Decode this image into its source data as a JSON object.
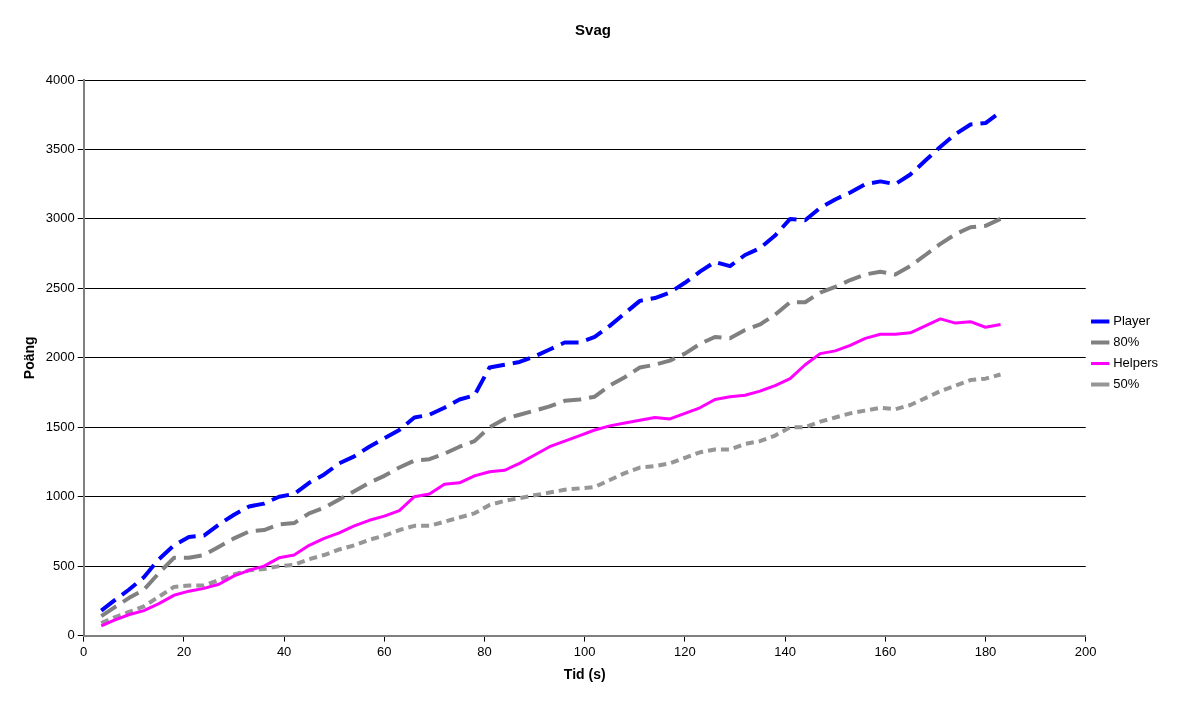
{
  "chart_data": {
    "type": "line",
    "title": "Svag",
    "xlabel": "Tid (s)",
    "ylabel": "Poäng",
    "x": [
      3.5,
      6,
      9,
      12,
      15,
      18,
      21,
      24,
      27,
      30,
      33,
      36,
      39,
      42,
      45,
      48,
      51,
      54,
      57,
      60,
      63,
      66,
      69,
      72,
      75,
      78,
      81,
      84,
      87,
      90,
      93,
      96,
      99,
      102,
      105,
      108,
      111,
      114,
      117,
      120,
      123,
      126,
      129,
      132,
      135,
      138,
      141,
      144,
      147,
      150,
      153,
      156,
      159,
      162,
      165,
      168,
      171,
      174,
      177,
      180,
      183
    ],
    "xlim": [
      0,
      200
    ],
    "xticks": [
      0,
      20,
      40,
      60,
      80,
      100,
      120,
      140,
      160,
      180,
      200
    ],
    "ylim": [
      0,
      4000
    ],
    "yticks": [
      0,
      500,
      1000,
      1500,
      2000,
      2500,
      3000,
      3500,
      4000
    ],
    "grid": "y",
    "legend": "right",
    "marker": "none",
    "series": [
      {
        "name": "Player",
        "color": "#0000ff",
        "line_style": "dashed",
        "values": [
          180,
          250,
          330,
          420,
          550,
          650,
          710,
          720,
          800,
          870,
          930,
          950,
          1000,
          1020,
          1100,
          1160,
          1240,
          1290,
          1360,
          1420,
          1480,
          1570,
          1590,
          1640,
          1700,
          1730,
          1930,
          1950,
          1970,
          2010,
          2060,
          2110,
          2110,
          2150,
          2230,
          2320,
          2410,
          2430,
          2470,
          2540,
          2620,
          2690,
          2660,
          2740,
          2790,
          2880,
          3000,
          2990,
          3080,
          3140,
          3190,
          3250,
          3270,
          3250,
          3320,
          3420,
          3520,
          3610,
          3680,
          3690,
          3770
        ]
      },
      {
        "name": "80%",
        "color": "#808080",
        "line_style": "dashed",
        "values": [
          140,
          200,
          270,
          330,
          450,
          560,
          560,
          580,
          640,
          700,
          750,
          760,
          800,
          810,
          880,
          920,
          980,
          1040,
          1100,
          1150,
          1210,
          1260,
          1270,
          1310,
          1360,
          1400,
          1500,
          1560,
          1590,
          1620,
          1650,
          1690,
          1700,
          1720,
          1800,
          1860,
          1930,
          1950,
          1980,
          2030,
          2100,
          2150,
          2140,
          2200,
          2240,
          2310,
          2400,
          2400,
          2470,
          2510,
          2560,
          2600,
          2620,
          2600,
          2660,
          2740,
          2820,
          2890,
          2940,
          2950,
          3000
        ]
      },
      {
        "name": "Helpers",
        "color": "#ff00ff",
        "line_style": "solid",
        "values": [
          70,
          110,
          150,
          180,
          230,
          290,
          320,
          340,
          370,
          430,
          470,
          500,
          560,
          580,
          650,
          700,
          740,
          790,
          830,
          860,
          900,
          1000,
          1020,
          1090,
          1100,
          1150,
          1180,
          1190,
          1240,
          1300,
          1360,
          1400,
          1440,
          1480,
          1510,
          1530,
          1550,
          1570,
          1560,
          1600,
          1640,
          1700,
          1720,
          1730,
          1760,
          1800,
          1850,
          1950,
          2030,
          2050,
          2090,
          2140,
          2170,
          2170,
          2180,
          2230,
          2280,
          2250,
          2260,
          2220,
          2240
        ]
      },
      {
        "name": "50%",
        "color": "#969696",
        "line_style": "dotted",
        "values": [
          90,
          130,
          170,
          210,
          280,
          350,
          360,
          360,
          400,
          440,
          470,
          480,
          500,
          510,
          550,
          580,
          620,
          650,
          690,
          720,
          760,
          790,
          790,
          820,
          850,
          880,
          940,
          970,
          990,
          1010,
          1030,
          1050,
          1060,
          1070,
          1120,
          1170,
          1210,
          1220,
          1240,
          1280,
          1320,
          1340,
          1340,
          1380,
          1400,
          1440,
          1500,
          1500,
          1540,
          1570,
          1600,
          1620,
          1640,
          1630,
          1660,
          1710,
          1760,
          1800,
          1840,
          1850,
          1880
        ]
      }
    ]
  }
}
